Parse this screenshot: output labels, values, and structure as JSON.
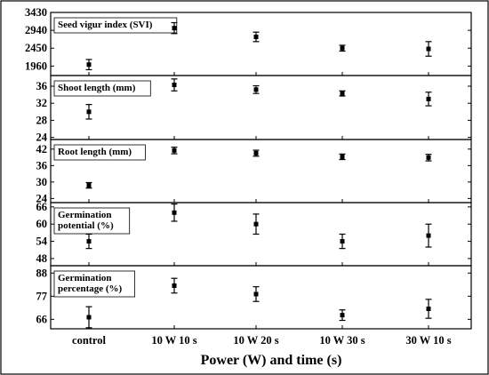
{
  "chart_data": {
    "type": "scatter",
    "categories": [
      "control",
      "10 W 10 s",
      "10 W 20 s",
      "10 W 30 s",
      "30 W 10 s"
    ],
    "xlabel": "Power (W) and time (s)",
    "grid": false,
    "panels": [
      {
        "title_lines": [
          "Seed vigur index (SVI)"
        ],
        "ylim": [
          1700,
          3430
        ],
        "yticks": [
          1960,
          2450,
          2940,
          3430
        ],
        "values": [
          2000,
          3000,
          2760,
          2450,
          2430
        ],
        "errors": [
          140,
          150,
          130,
          80,
          200
        ]
      },
      {
        "title_lines": [
          "Shoot length (mm)"
        ],
        "ylim": [
          23.5,
          38.5
        ],
        "yticks": [
          24,
          28,
          32,
          36
        ],
        "values": [
          30.0,
          36.3,
          35.2,
          34.3,
          33.0
        ],
        "errors": [
          1.7,
          1.4,
          0.9,
          0.6,
          1.6
        ]
      },
      {
        "title_lines": [
          "Root length (mm)"
        ],
        "ylim": [
          22.5,
          45.5
        ],
        "yticks": [
          24,
          30,
          36,
          42
        ],
        "values": [
          28.8,
          41.5,
          40.5,
          39.2,
          38.9
        ],
        "errors": [
          1.0,
          1.2,
          1.1,
          1.0,
          1.2
        ]
      },
      {
        "title_lines": [
          "Germination",
          "potential (%)"
        ],
        "ylim": [
          45.5,
          67.5
        ],
        "yticks": [
          48,
          54,
          60,
          66
        ],
        "values": [
          54,
          64,
          60,
          54,
          56
        ],
        "errors": [
          2.5,
          3.0,
          3.5,
          2.5,
          4.0
        ]
      },
      {
        "title_lines": [
          "Germination",
          "percentage (%)"
        ],
        "ylim": [
          61.5,
          91.5
        ],
        "yticks": [
          66,
          77,
          88
        ],
        "values": [
          67,
          82,
          78,
          68,
          71
        ],
        "errors": [
          5.0,
          3.5,
          3.5,
          2.5,
          4.5
        ]
      }
    ]
  }
}
